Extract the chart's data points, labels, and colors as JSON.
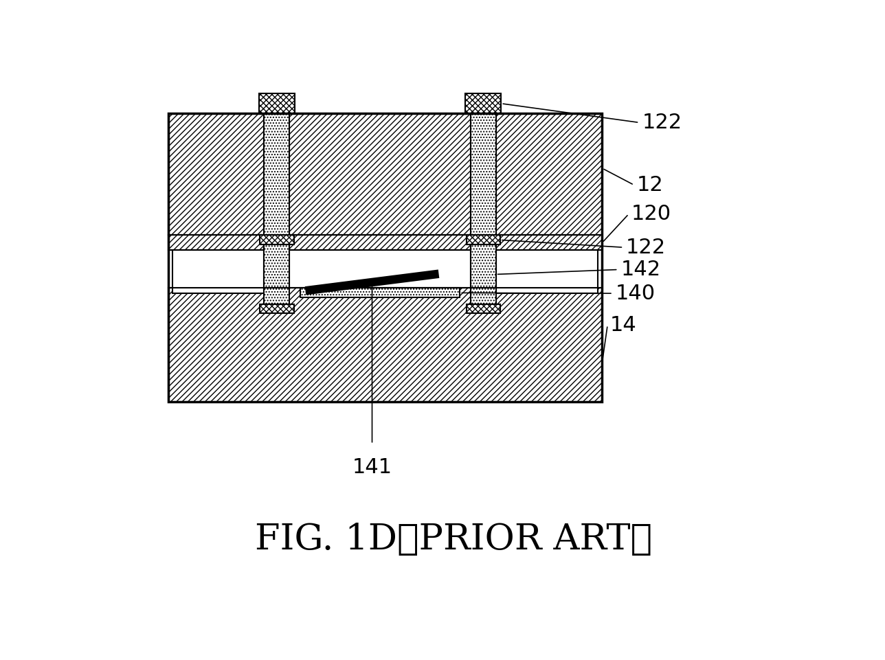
{
  "title": "FIG. 1D（PRIOR ART）",
  "title_plain": "FIG. 1D (PRIOR ART）",
  "bg_color": "#ffffff",
  "lw": 1.5,
  "labels": [
    "122",
    "12",
    "120",
    "122",
    "142",
    "140",
    "14",
    "141"
  ],
  "fig_w": 12.88,
  "fig_h": 9.61,
  "dpi": 100
}
